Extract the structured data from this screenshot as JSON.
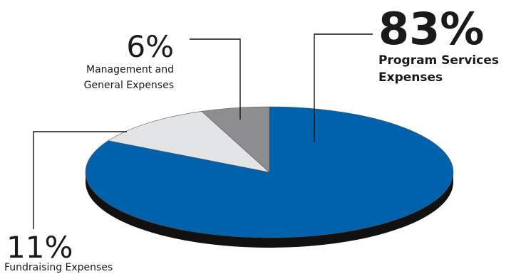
{
  "chart_data": {
    "type": "pie",
    "style": "3d-tilted",
    "slices": [
      {
        "key": "program",
        "percent_label": "83%",
        "label_lines": [
          "Program Services",
          "Expenses"
        ],
        "value": 83,
        "color": "#0062ad"
      },
      {
        "key": "fundraising",
        "percent_label": "11%",
        "label_lines": [
          "Fundraising Expenses"
        ],
        "value": 11,
        "color": "#e3e4e5"
      },
      {
        "key": "management",
        "percent_label": "6%",
        "label_lines": [
          "Management and",
          "General Expenses"
        ],
        "value": 6,
        "color": "#8e8e90"
      }
    ],
    "edge_color": "#111111",
    "leader_color": "#111111"
  }
}
